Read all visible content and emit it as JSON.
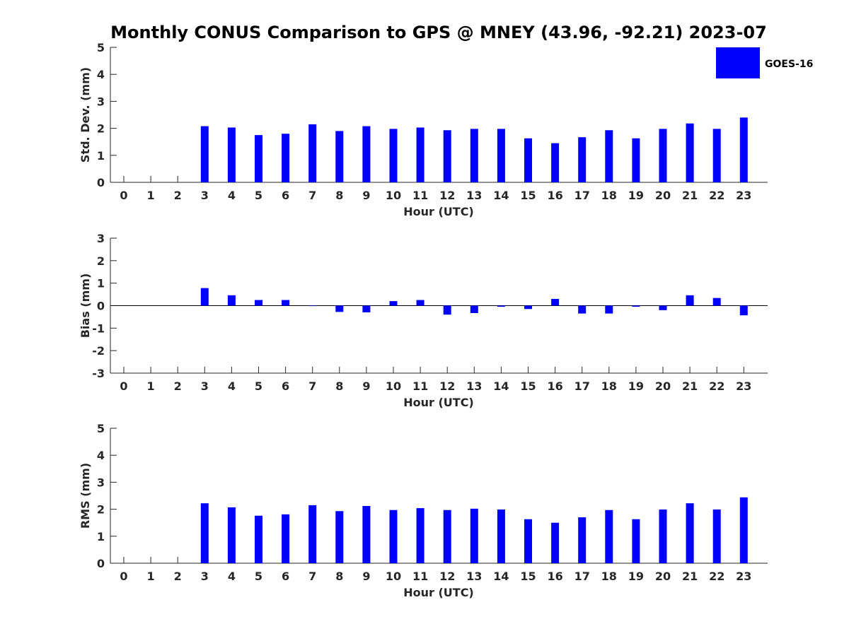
{
  "title": "Monthly CONUS Comparison to GPS @ MNEY (43.96, -92.21) 2023-07",
  "legend": {
    "label": "GOES-16",
    "color": "#0000ff"
  },
  "chart_data": [
    {
      "type": "bar",
      "ylabel": "Std. Dev. (mm)",
      "xlabel": "Hour (UTC)",
      "ylim": [
        0,
        5
      ],
      "yticks": [
        "0",
        "1",
        "2",
        "3",
        "4",
        "5"
      ],
      "categories": [
        "0",
        "1",
        "2",
        "3",
        "4",
        "5",
        "6",
        "7",
        "8",
        "9",
        "10",
        "11",
        "12",
        "13",
        "14",
        "15",
        "16",
        "17",
        "18",
        "19",
        "20",
        "21",
        "22",
        "23"
      ],
      "series": [
        {
          "name": "GOES-16",
          "color": "#0000ff",
          "values": [
            null,
            null,
            null,
            2.08,
            2.03,
            1.75,
            1.8,
            2.15,
            1.9,
            2.08,
            1.98,
            2.03,
            1.93,
            1.98,
            1.98,
            1.63,
            1.45,
            1.67,
            1.93,
            1.63,
            1.98,
            2.18,
            1.98,
            2.4
          ]
        }
      ]
    },
    {
      "type": "bar",
      "ylabel": "Bias (mm)",
      "xlabel": "Hour (UTC)",
      "ylim": [
        -3,
        3
      ],
      "yticks": [
        "-3",
        "-2",
        "-1",
        "0",
        "1",
        "2",
        "3"
      ],
      "categories": [
        "0",
        "1",
        "2",
        "3",
        "4",
        "5",
        "6",
        "7",
        "8",
        "9",
        "10",
        "11",
        "12",
        "13",
        "14",
        "15",
        "16",
        "17",
        "18",
        "19",
        "20",
        "21",
        "22",
        "23"
      ],
      "series": [
        {
          "name": "GOES-16",
          "color": "#0000ff",
          "values": [
            null,
            null,
            null,
            0.78,
            0.46,
            0.25,
            0.25,
            0.0,
            -0.28,
            -0.3,
            0.2,
            0.25,
            -0.4,
            -0.33,
            -0.05,
            -0.15,
            0.3,
            -0.35,
            -0.35,
            -0.05,
            -0.2,
            0.46,
            0.34,
            -0.43
          ]
        }
      ]
    },
    {
      "type": "bar",
      "ylabel": "RMS (mm)",
      "xlabel": "Hour (UTC)",
      "ylim": [
        0,
        5
      ],
      "yticks": [
        "0",
        "1",
        "2",
        "3",
        "4",
        "5"
      ],
      "categories": [
        "0",
        "1",
        "2",
        "3",
        "4",
        "5",
        "6",
        "7",
        "8",
        "9",
        "10",
        "11",
        "12",
        "13",
        "14",
        "15",
        "16",
        "17",
        "18",
        "19",
        "20",
        "21",
        "22",
        "23"
      ],
      "series": [
        {
          "name": "GOES-16",
          "color": "#0000ff",
          "values": [
            null,
            null,
            null,
            2.22,
            2.07,
            1.76,
            1.81,
            2.15,
            1.93,
            2.12,
            1.97,
            2.04,
            1.97,
            2.02,
            1.99,
            1.63,
            1.5,
            1.7,
            1.97,
            1.63,
            1.99,
            2.22,
            1.99,
            2.44
          ]
        }
      ]
    }
  ]
}
